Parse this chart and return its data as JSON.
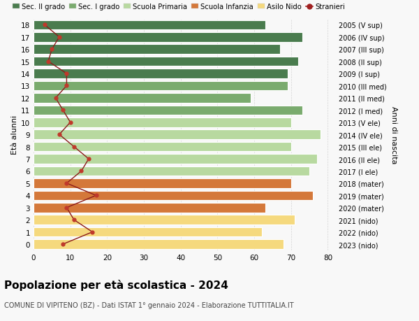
{
  "ages": [
    18,
    17,
    16,
    15,
    14,
    13,
    12,
    11,
    10,
    9,
    8,
    7,
    6,
    5,
    4,
    3,
    2,
    1,
    0
  ],
  "years": [
    "2005 (V sup)",
    "2006 (IV sup)",
    "2007 (III sup)",
    "2008 (II sup)",
    "2009 (I sup)",
    "2010 (III med)",
    "2011 (II med)",
    "2012 (I med)",
    "2013 (V ele)",
    "2014 (IV ele)",
    "2015 (III ele)",
    "2016 (II ele)",
    "2017 (I ele)",
    "2018 (mater)",
    "2019 (mater)",
    "2020 (mater)",
    "2021 (nido)",
    "2022 (nido)",
    "2023 (nido)"
  ],
  "bar_values": [
    63,
    73,
    67,
    72,
    69,
    69,
    59,
    73,
    70,
    78,
    70,
    77,
    75,
    70,
    76,
    63,
    71,
    62,
    68
  ],
  "bar_colors": [
    "#4a7c4e",
    "#4a7c4e",
    "#4a7c4e",
    "#4a7c4e",
    "#4a7c4e",
    "#7aab6e",
    "#7aab6e",
    "#7aab6e",
    "#b8d9a0",
    "#b8d9a0",
    "#b8d9a0",
    "#b8d9a0",
    "#b8d9a0",
    "#d4783a",
    "#d4783a",
    "#d4783a",
    "#f5d97e",
    "#f5d97e",
    "#f5d97e"
  ],
  "stranieri_values": [
    3,
    7,
    5,
    4,
    9,
    9,
    6,
    8,
    10,
    7,
    11,
    15,
    13,
    9,
    17,
    9,
    11,
    16,
    8
  ],
  "legend_labels": [
    "Sec. II grado",
    "Sec. I grado",
    "Scuola Primaria",
    "Scuola Infanzia",
    "Asilo Nido",
    "Stranieri"
  ],
  "legend_colors": [
    "#4a7c4e",
    "#7aab6e",
    "#b8d9a0",
    "#d4783a",
    "#f5d97e",
    "#a02020"
  ],
  "ylabel_left": "Età alunni",
  "ylabel_right": "Anni di nascita",
  "title": "Popolazione per età scolastica - 2024",
  "subtitle": "COMUNE DI VIPITENO (BZ) - Dati ISTAT 1° gennaio 2024 - Elaborazione TUTTITALIA.IT",
  "xlim": [
    0,
    82
  ],
  "xticks": [
    0,
    10,
    20,
    30,
    40,
    50,
    60,
    70,
    80
  ],
  "bg_color": "#f8f8f8",
  "grid_color": "#cccccc"
}
